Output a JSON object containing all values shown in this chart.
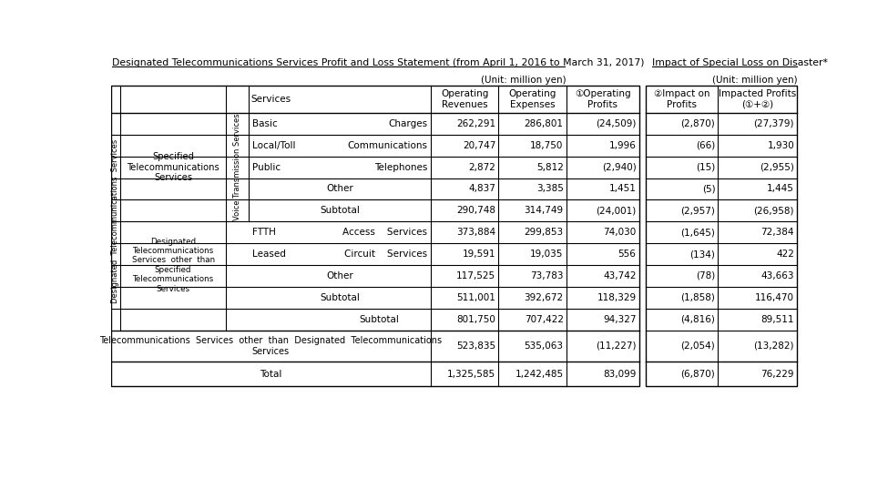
{
  "title": "Designated Telecommunications Services Profit and Loss Statement (from April 1, 2016 to March 31, 2017)",
  "title2": "Impact of Special Loss on Disaster*",
  "unit": "(Unit: million yen)",
  "rows": [
    {
      "label_inner": "Basic",
      "label_inner2": "Charges",
      "rev": "262,291",
      "exp": "286,801",
      "op": "(24,509)",
      "imp": "(2,870)",
      "tot": "(27,379)"
    },
    {
      "label_inner": "Local/Toll",
      "label_inner2": "Communications",
      "rev": "20,747",
      "exp": "18,750",
      "op": "1,996",
      "imp": "(66)",
      "tot": "1,930"
    },
    {
      "label_inner": "Public",
      "label_inner2": "Telephones",
      "rev": "2,872",
      "exp": "5,812",
      "op": "(2,940)",
      "imp": "(15)",
      "tot": "(2,955)"
    },
    {
      "label_inner": "",
      "label_inner2": "Other",
      "rev": "4,837",
      "exp": "3,385",
      "op": "1,451",
      "imp": "(5)",
      "tot": "1,445"
    },
    {
      "label_inner": "",
      "label_inner2": "Subtotal",
      "rev": "290,748",
      "exp": "314,749",
      "op": "(24,001)",
      "imp": "(2,957)",
      "tot": "(26,958)"
    },
    {
      "label_inner": "FTTH",
      "label_inner2": "Access    Services",
      "rev": "373,884",
      "exp": "299,853",
      "op": "74,030",
      "imp": "(1,645)",
      "tot": "72,384"
    },
    {
      "label_inner": "Leased",
      "label_inner2": "Circuit    Services",
      "rev": "19,591",
      "exp": "19,035",
      "op": "556",
      "imp": "(134)",
      "tot": "422"
    },
    {
      "label_inner": "",
      "label_inner2": "Other",
      "rev": "117,525",
      "exp": "73,783",
      "op": "43,742",
      "imp": "(78)",
      "tot": "43,663"
    },
    {
      "label_inner": "",
      "label_inner2": "Subtotal",
      "rev": "511,001",
      "exp": "392,672",
      "op": "118,329",
      "imp": "(1,858)",
      "tot": "116,470"
    },
    {
      "label_inner": "",
      "label_inner2": "Subtotal",
      "rev": "801,750",
      "exp": "707,422",
      "op": "94,327",
      "imp": "(4,816)",
      "tot": "89,511"
    },
    {
      "label_inner": "Telecommunications  Services  other  than  Designated  Telecommunications\nServices",
      "label_inner2": "",
      "rev": "523,835",
      "exp": "535,063",
      "op": "(11,227)",
      "imp": "(2,054)",
      "tot": "(13,282)"
    },
    {
      "label_inner": "",
      "label_inner2": "Total",
      "rev": "1,325,585",
      "exp": "1,242,485",
      "op": "83,099",
      "imp": "(6,870)",
      "tot": "76,229"
    }
  ]
}
